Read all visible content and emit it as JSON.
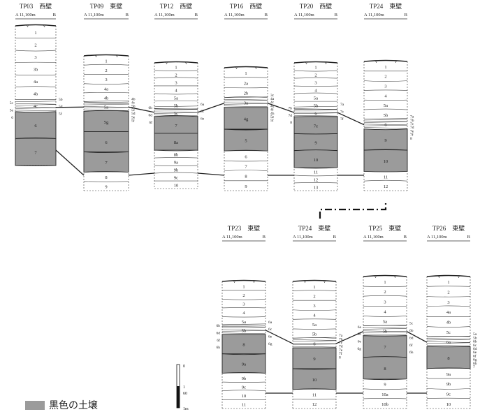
{
  "columns": [
    {
      "id": "TP03",
      "title": "TP03　西壁",
      "scale": "A 11,100m",
      "end": "B",
      "layers": [
        [
          "1",
          0,
          0
        ],
        [
          "2",
          0,
          0
        ],
        [
          "3",
          0,
          0
        ],
        [
          "3b",
          0,
          0
        ],
        [
          "4a",
          0,
          0
        ],
        [
          "4b",
          0,
          0
        ],
        [
          "4c",
          0,
          0
        ],
        [
          "6",
          0,
          1
        ],
        [
          "7",
          0,
          1
        ]
      ],
      "side": [
        "5b",
        "5c",
        "5d",
        "5e",
        "5f",
        "6"
      ]
    },
    {
      "id": "TP09",
      "title": "TP09　東壁",
      "scale": "A 11,100m",
      "end": "B",
      "layers": [
        [
          "1",
          0,
          0
        ],
        [
          "2",
          0,
          0
        ],
        [
          "3",
          0,
          0
        ],
        [
          "4a",
          0,
          0
        ],
        [
          "4b",
          0,
          0
        ],
        [
          "5a",
          0,
          0
        ],
        [
          "5g",
          0,
          1
        ],
        [
          "6",
          0,
          1
        ],
        [
          "7",
          0,
          1
        ],
        [
          "8",
          0,
          0
        ],
        [
          "9",
          0,
          0
        ]
      ],
      "side": [
        "4b",
        "4c",
        "5b",
        "5c",
        "5d",
        "5e",
        "5f"
      ]
    },
    {
      "id": "TP12",
      "title": "TP12　西壁",
      "scale": "A 11,100m",
      "end": "B",
      "layers": [
        [
          "1",
          0,
          0
        ],
        [
          "2",
          0,
          0
        ],
        [
          "3",
          0,
          0
        ],
        [
          "4",
          0,
          0
        ],
        [
          "5a",
          0,
          0
        ],
        [
          "5b",
          0,
          0
        ],
        [
          "5c",
          0,
          0
        ],
        [
          "7",
          0,
          1
        ],
        [
          "8a",
          0,
          1
        ],
        [
          "8b",
          0,
          0
        ],
        [
          "9a",
          0,
          0
        ],
        [
          "9b",
          0,
          0
        ],
        [
          "9c",
          0,
          0
        ],
        [
          "10",
          0,
          0
        ]
      ],
      "side": [
        "6a",
        "6b",
        "6c",
        "6d",
        "6e",
        "6f"
      ]
    },
    {
      "id": "TP16",
      "title": "TP16　西壁",
      "scale": "A 11,100m",
      "end": "B",
      "layers": [
        [
          "1",
          0,
          0
        ],
        [
          "2a",
          0,
          0
        ],
        [
          "2b",
          0,
          0
        ],
        [
          "3a",
          0,
          0
        ],
        [
          "4g",
          0,
          1
        ],
        [
          "5",
          0,
          1
        ],
        [
          "6",
          0,
          0
        ],
        [
          "7",
          0,
          0
        ],
        [
          "8",
          0,
          0
        ],
        [
          "9",
          0,
          0
        ]
      ],
      "side": [
        "3c",
        "4a",
        "4c",
        "4d",
        "4f",
        "4h",
        "5e",
        "5f"
      ]
    },
    {
      "id": "TP20",
      "title": "TP20　西壁",
      "scale": "A 11,100m",
      "end": "B",
      "layers": [
        [
          "1",
          0,
          0
        ],
        [
          "2",
          0,
          0
        ],
        [
          "3",
          0,
          0
        ],
        [
          "4",
          0,
          0
        ],
        [
          "5a",
          0,
          0
        ],
        [
          "5b",
          0,
          0
        ],
        [
          "6",
          0,
          0
        ],
        [
          "7e",
          0,
          1
        ],
        [
          "9",
          0,
          1
        ],
        [
          "10",
          0,
          1
        ],
        [
          "11",
          0,
          0
        ],
        [
          "12",
          0,
          0
        ],
        [
          "13",
          0,
          0
        ]
      ],
      "side": [
        "7a",
        "7b",
        "7c",
        "7d",
        "7f",
        "8"
      ]
    },
    {
      "id": "TP24a",
      "title": "TP24　東壁",
      "scale": "A 11,100m",
      "end": "B",
      "layers": [
        [
          "1",
          0,
          0
        ],
        [
          "2",
          0,
          0
        ],
        [
          "3",
          0,
          0
        ],
        [
          "4",
          0,
          0
        ],
        [
          "5a",
          0,
          0
        ],
        [
          "5b",
          0,
          0
        ],
        [
          "6",
          0,
          0
        ],
        [
          "9",
          0,
          1
        ],
        [
          "10",
          0,
          1
        ],
        [
          "11",
          0,
          0
        ],
        [
          "12",
          0,
          0
        ]
      ],
      "side": [
        "7a",
        "7b",
        "7c",
        "7d",
        "7e",
        "7f",
        "8"
      ]
    }
  ],
  "columns2": [
    {
      "id": "TP23",
      "title": "TP23　東壁",
      "scale": "A 11,100m",
      "end": "B",
      "layers": [
        [
          "1",
          0,
          0
        ],
        [
          "2",
          0,
          0
        ],
        [
          "3",
          0,
          0
        ],
        [
          "4",
          0,
          0
        ],
        [
          "5a",
          0,
          0
        ],
        [
          "5b",
          0,
          0
        ],
        [
          "8",
          0,
          1
        ],
        [
          "9a",
          0,
          1
        ],
        [
          "9b",
          0,
          0
        ],
        [
          "9c",
          0,
          0
        ],
        [
          "10",
          0,
          0
        ],
        [
          "11",
          0,
          0
        ]
      ],
      "side": [
        "6a",
        "6b",
        "6c",
        "6d",
        "6e",
        "6f",
        "6g",
        "6h"
      ]
    },
    {
      "id": "TP24b",
      "title": "TP24　東壁",
      "scale": "A 11,100m",
      "end": "B",
      "layers": [
        [
          "1",
          0,
          0
        ],
        [
          "2",
          0,
          0
        ],
        [
          "3",
          0,
          0
        ],
        [
          "4",
          0,
          0
        ],
        [
          "5a",
          0,
          0
        ],
        [
          "5b",
          0,
          0
        ],
        [
          "6",
          0,
          0
        ],
        [
          "9",
          0,
          1
        ],
        [
          "10",
          0,
          1
        ],
        [
          "11",
          0,
          0
        ],
        [
          "12",
          0,
          0
        ]
      ],
      "side": [
        "7a",
        "7b",
        "7c",
        "7d",
        "7e",
        "7f",
        "8"
      ]
    },
    {
      "id": "TP25",
      "title": "TP25　東壁",
      "scale": "A 11,100m",
      "end": "B",
      "layers": [
        [
          "1",
          0,
          0
        ],
        [
          "2",
          0,
          0
        ],
        [
          "3",
          0,
          0
        ],
        [
          "4",
          0,
          0
        ],
        [
          "5a",
          0,
          0
        ],
        [
          "5b",
          0,
          0
        ],
        [
          "7",
          0,
          1
        ],
        [
          "8",
          0,
          1
        ],
        [
          "9",
          0,
          0
        ],
        [
          "10a",
          0,
          0
        ],
        [
          "10b",
          0,
          0
        ]
      ],
      "side": [
        "5c",
        "6a",
        "6b",
        "6c",
        "6d",
        "6e",
        "6f",
        "6g",
        "6h"
      ]
    },
    {
      "id": "TP26",
      "title": "TP26　東壁",
      "scale": "A 11,100m",
      "end": "B",
      "layers": [
        [
          "1",
          0,
          0
        ],
        [
          "2",
          0,
          0
        ],
        [
          "3",
          0,
          0
        ],
        [
          "4a",
          0,
          0
        ],
        [
          "4b",
          0,
          0
        ],
        [
          "5c",
          0,
          0
        ],
        [
          "6a",
          0,
          0
        ],
        [
          "8",
          0,
          1
        ],
        [
          "9a",
          0,
          0
        ],
        [
          "9b",
          0,
          0
        ],
        [
          "9c",
          0,
          0
        ],
        [
          "10",
          0,
          0
        ]
      ],
      "side": [
        "5a",
        "5b",
        "6b",
        "6c",
        "6d",
        "6e",
        "6f",
        "6g",
        "6h",
        "7"
      ]
    }
  ],
  "scale_bar": {
    "top": "0",
    "mid": "1",
    "mid2": "60",
    "bottom": "1m"
  },
  "legend": {
    "label": "黒色の土壌",
    "color": "#9b9b9b"
  }
}
